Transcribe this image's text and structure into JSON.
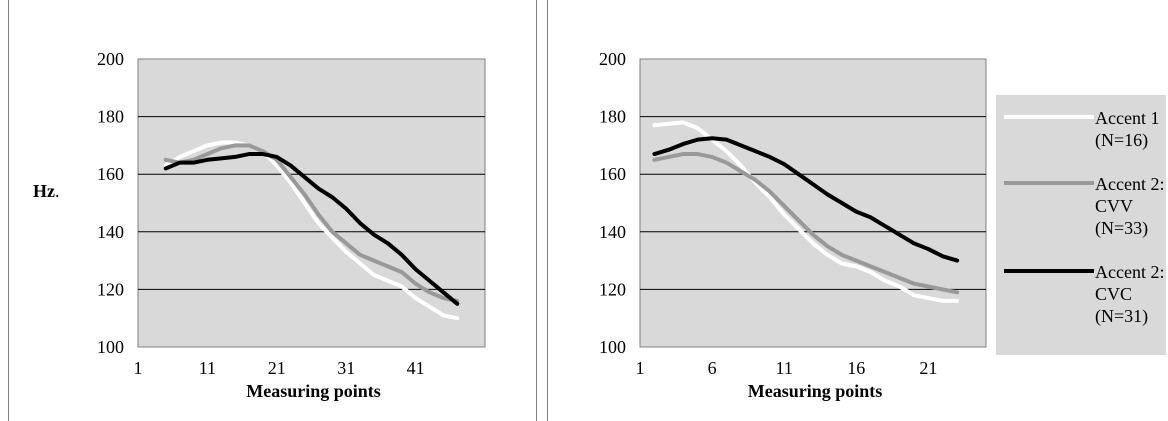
{
  "colors": {
    "plot_area": "#d9d9d9",
    "gridline": "#000000",
    "accent1": "#ffffff",
    "accent2_cvv": "#999999",
    "accent2_cvc": "#000000"
  },
  "chart_data": [
    {
      "type": "line",
      "title": "",
      "xlabel": "Measuring points",
      "ylabel": "Hz.",
      "ylim": [
        100,
        200
      ],
      "xlim": [
        1,
        51
      ],
      "yticks": [
        "100",
        "120",
        "140",
        "160",
        "180",
        "200"
      ],
      "xticks": [
        "1",
        "11",
        "21",
        "31",
        "41"
      ],
      "grid": "horizontal",
      "legend": "none",
      "series": [
        {
          "color": "#ffffff",
          "x": [
            5,
            7,
            9,
            11,
            13,
            15,
            17,
            19,
            21,
            23,
            25,
            27,
            29,
            31,
            33,
            35,
            37,
            39,
            41,
            43,
            45,
            47
          ],
          "y": [
            163,
            166,
            168,
            170,
            171,
            171,
            170,
            168,
            163,
            157,
            150,
            143,
            138,
            133,
            129,
            125,
            123,
            121,
            117,
            114,
            111,
            110
          ]
        },
        {
          "color": "#999999",
          "x": [
            5,
            7,
            9,
            11,
            13,
            15,
            17,
            19,
            21,
            23,
            25,
            27,
            29,
            31,
            33,
            35,
            37,
            39,
            41,
            43,
            45,
            47
          ],
          "y": [
            165,
            164,
            165,
            167,
            169,
            170,
            170,
            168,
            165,
            159,
            153,
            146,
            140,
            136,
            132,
            130,
            128,
            126,
            122,
            119,
            117,
            116
          ]
        },
        {
          "color": "#000000",
          "x": [
            5,
            7,
            9,
            11,
            13,
            15,
            17,
            19,
            21,
            23,
            25,
            27,
            29,
            31,
            33,
            35,
            37,
            39,
            41,
            43,
            45,
            47
          ],
          "y": [
            162,
            164,
            164,
            165,
            165.5,
            166,
            167,
            167,
            166,
            163,
            159,
            155,
            152,
            148,
            143,
            139,
            136,
            132,
            127,
            123,
            119,
            115
          ]
        }
      ]
    },
    {
      "type": "line",
      "title": "",
      "xlabel": "Measuring points",
      "ylabel": "",
      "ylim": [
        100,
        200
      ],
      "xlim": [
        1,
        25
      ],
      "yticks": [
        "100",
        "120",
        "140",
        "160",
        "180",
        "200"
      ],
      "xticks": [
        "1",
        "6",
        "11",
        "16",
        "21"
      ],
      "grid": "horizontal",
      "legend": "right",
      "series": [
        {
          "name": "Accent 1 (N=16)",
          "legend_lines": [
            "Accent 1",
            "(N=16)"
          ],
          "color": "#ffffff",
          "x": [
            2,
            3,
            4,
            5,
            6,
            7,
            8,
            9,
            10,
            11,
            12,
            13,
            14,
            15,
            16,
            17,
            18,
            19,
            20,
            21,
            22,
            23
          ],
          "y": [
            177,
            177.5,
            178,
            176,
            172,
            168,
            163,
            157,
            152,
            146,
            141,
            136,
            132,
            129,
            128,
            126,
            123,
            121,
            118,
            117,
            116,
            116
          ]
        },
        {
          "name": "Accent 2: CVV (N=33)",
          "legend_lines": [
            "Accent 2:",
            "CVV",
            "(N=33)"
          ],
          "color": "#999999",
          "x": [
            2,
            3,
            4,
            5,
            6,
            7,
            8,
            9,
            10,
            11,
            12,
            13,
            14,
            15,
            16,
            17,
            18,
            19,
            20,
            21,
            22,
            23
          ],
          "y": [
            165,
            166,
            167,
            167,
            166,
            164,
            161,
            158,
            154,
            149,
            144,
            139,
            135,
            132,
            130,
            128,
            126,
            124,
            122,
            121,
            120,
            119
          ]
        },
        {
          "name": "Accent 2: CVC (N=31)",
          "legend_lines": [
            "Accent 2:",
            "CVC",
            "(N=31)"
          ],
          "color": "#000000",
          "x": [
            2,
            3,
            4,
            5,
            6,
            7,
            8,
            9,
            10,
            11,
            12,
            13,
            14,
            15,
            16,
            17,
            18,
            19,
            20,
            21,
            22,
            23
          ],
          "y": [
            167,
            168.5,
            170.5,
            172,
            172.5,
            172,
            170,
            168,
            166,
            163.5,
            160,
            156.5,
            153,
            150,
            147,
            145,
            142,
            139,
            136,
            134,
            131.5,
            130
          ]
        }
      ]
    }
  ]
}
